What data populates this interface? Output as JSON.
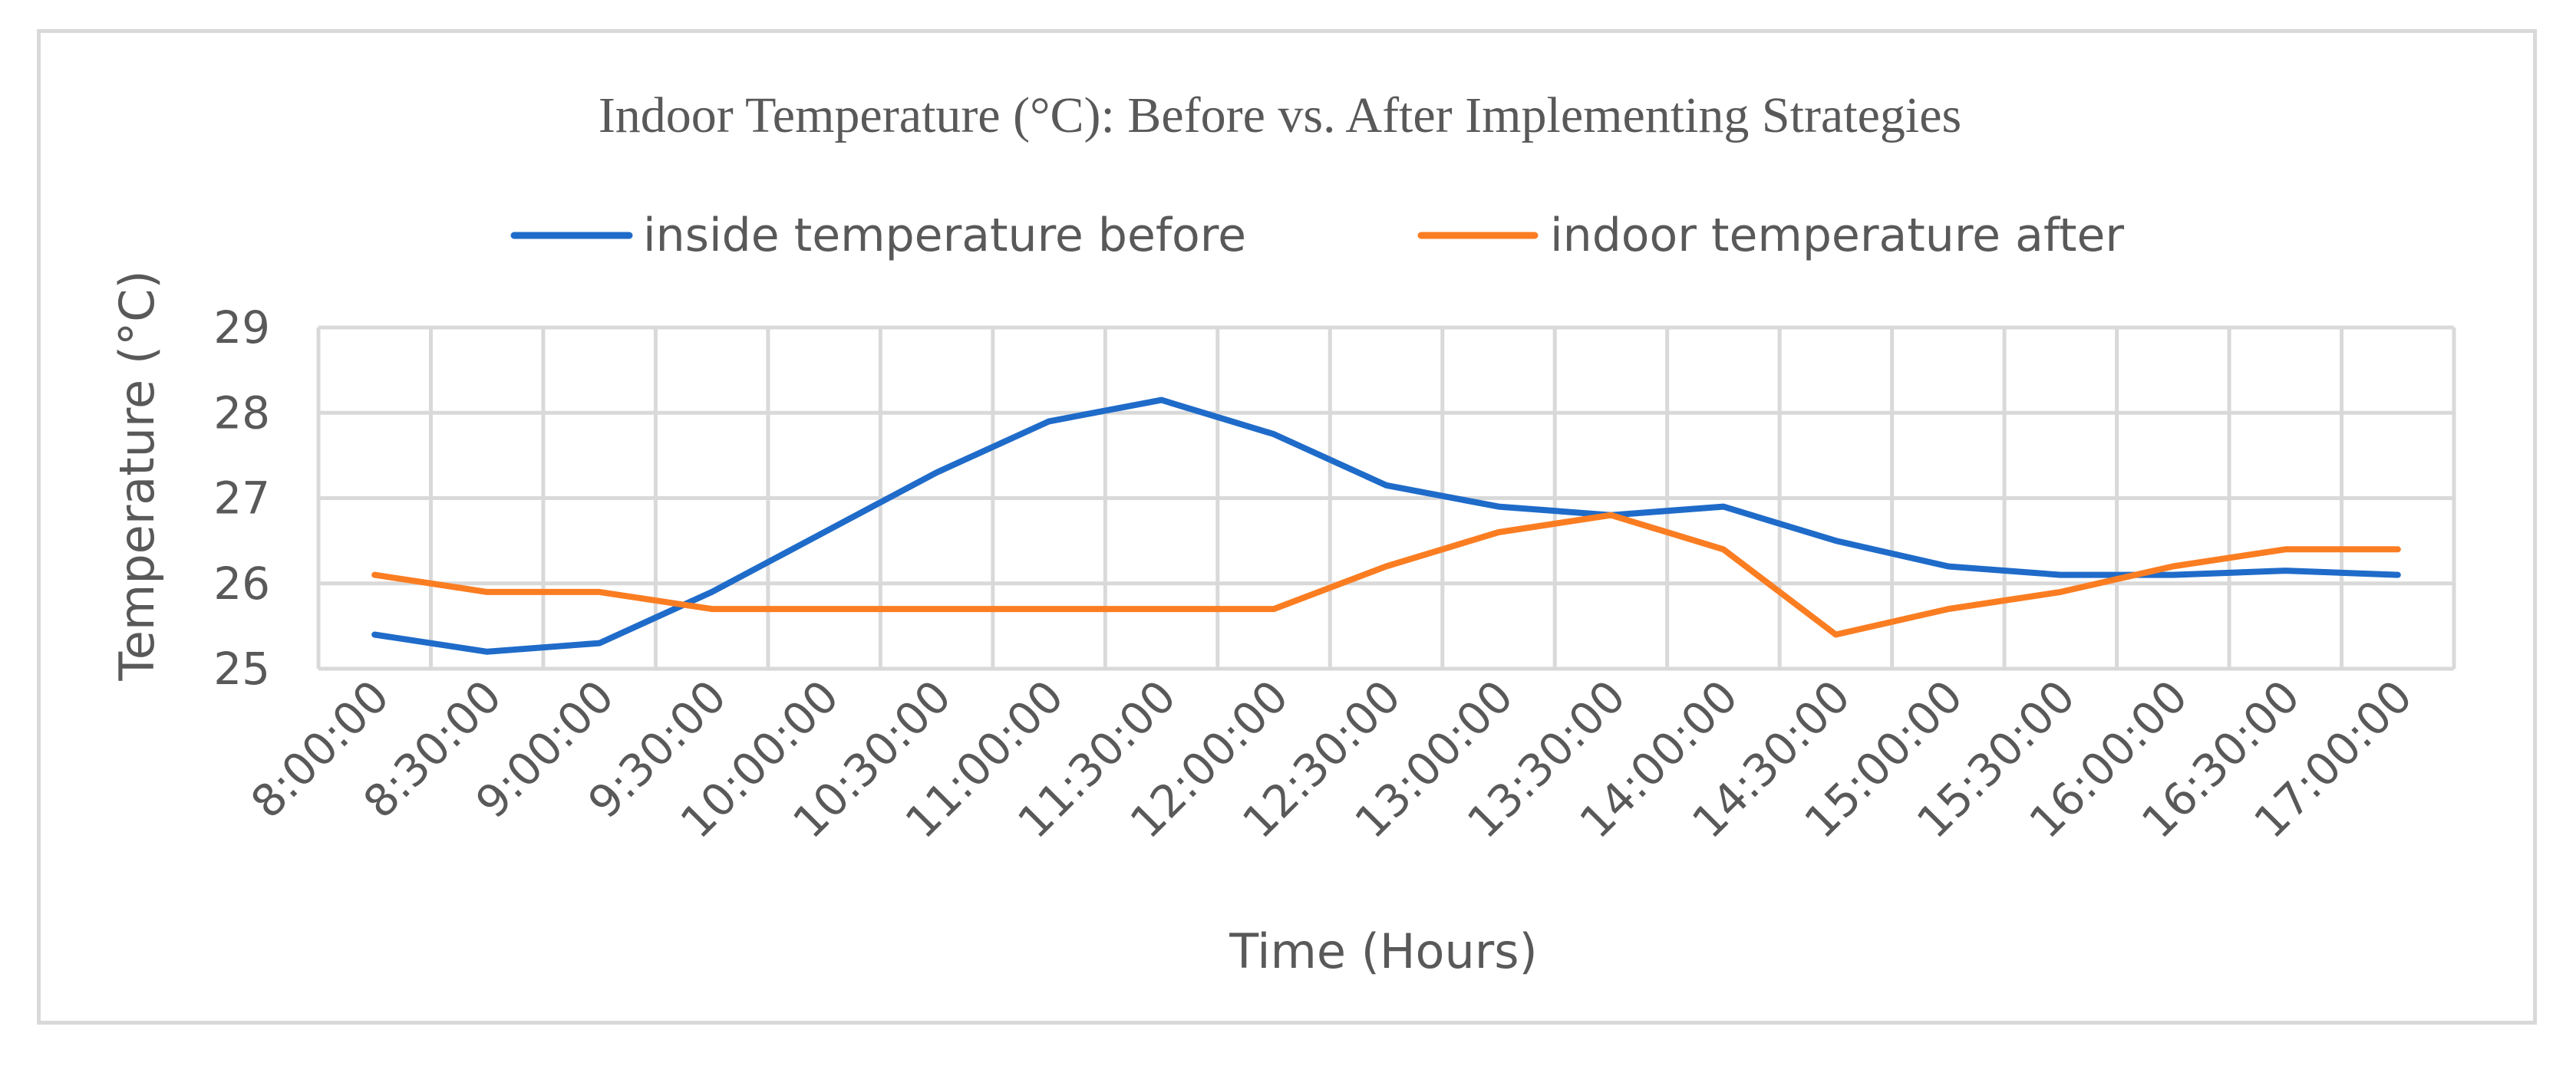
{
  "chart_data": {
    "type": "line",
    "title": "Indoor Temperature (°C): Before vs. After Implementing Strategies",
    "xlabel": "Time (Hours)",
    "ylabel": "Temperature (°C)",
    "ylim": [
      25,
      29
    ],
    "yticks": [
      "25",
      "26",
      "27",
      "28",
      "29"
    ],
    "grid": true,
    "legend_position": "top",
    "categories": [
      "8:00:00",
      "8:30:00",
      "9:00:00",
      "9:30:00",
      "10:00:00",
      "10:30:00",
      "11:00:00",
      "11:30:00",
      "12:00:00",
      "12:30:00",
      "13:00:00",
      "13:30:00",
      "14:00:00",
      "14:30:00",
      "15:00:00",
      "15:30:00",
      "16:00:00",
      "16:30:00",
      "17:00:00"
    ],
    "series": [
      {
        "name": "inside temperature before",
        "color": "#1f6bc9",
        "values": [
          25.4,
          25.2,
          25.3,
          25.9,
          26.6,
          27.3,
          27.9,
          28.15,
          27.75,
          27.15,
          26.9,
          26.8,
          26.9,
          26.5,
          26.2,
          26.1,
          26.1,
          26.15,
          26.1
        ]
      },
      {
        "name": "indoor temperature after",
        "color": "#fb7d22",
        "values": [
          26.1,
          25.9,
          25.9,
          25.7,
          25.7,
          25.7,
          25.7,
          25.7,
          25.7,
          26.2,
          26.6,
          26.8,
          26.4,
          25.4,
          25.7,
          25.9,
          26.2,
          26.4,
          26.4
        ]
      }
    ]
  }
}
